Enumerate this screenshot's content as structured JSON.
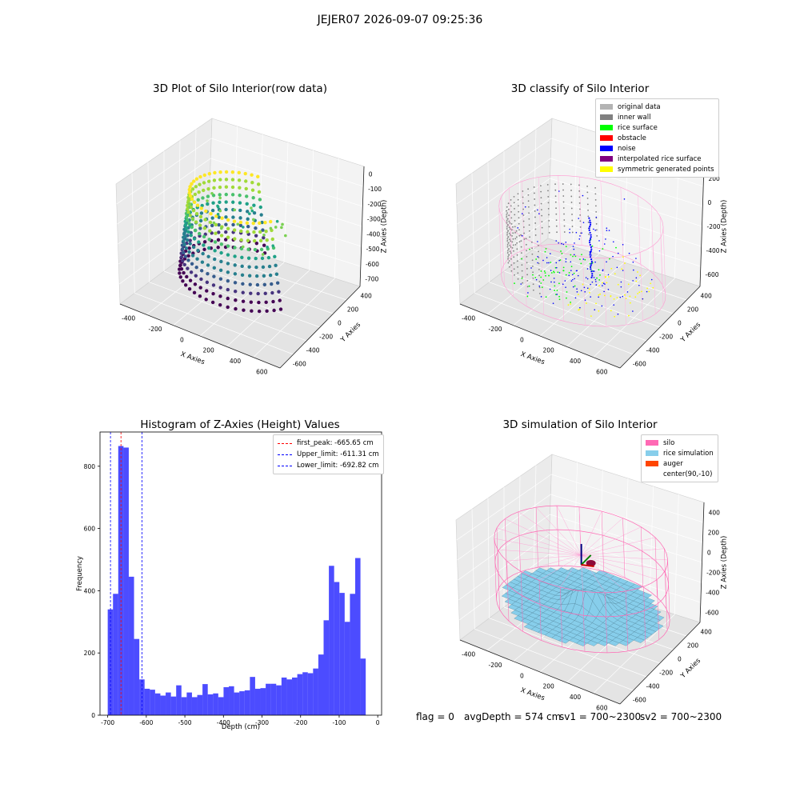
{
  "figure": {
    "suptitle": "JEJER07 2026-09-07 09:25:36"
  },
  "panels": {
    "raw": {
      "title": "3D Plot of Silo Interior(row data)",
      "xlabel": "X Axies",
      "ylabel": "Y Axies",
      "zlabel": "Z Axies (Depth)",
      "x_ticks": [
        "-400",
        "-200",
        "0",
        "200",
        "400",
        "600"
      ],
      "y_ticks": [
        "-600",
        "-400",
        "-200",
        "0",
        "200",
        "400"
      ],
      "z_ticks": [
        "0",
        "-100",
        "-200",
        "-300",
        "-400",
        "-500",
        "-600",
        "-700"
      ]
    },
    "classify": {
      "title": "3D classify of Silo Interior",
      "xlabel": "X Axies",
      "ylabel": "Y Axies",
      "zlabel": "Z Axies (Depth)",
      "x_ticks": [
        "-400",
        "-200",
        "0",
        "200",
        "400",
        "600"
      ],
      "y_ticks": [
        "-600",
        "-400",
        "-200",
        "0",
        "200",
        "400"
      ],
      "z_ticks": [
        "200",
        "0",
        "-200",
        "-400",
        "-600"
      ],
      "legend": [
        {
          "label": "original data",
          "color": "#b3b3b3"
        },
        {
          "label": "inner wall",
          "color": "#808080"
        },
        {
          "label": "rice surface",
          "color": "#00ff00"
        },
        {
          "label": "obstacle",
          "color": "#ff0000"
        },
        {
          "label": "noise",
          "color": "#0000ff"
        },
        {
          "label": "interpolated rice surface",
          "color": "#800080"
        },
        {
          "label": "symmetric generated points",
          "color": "#ffff00"
        }
      ]
    },
    "simulation": {
      "title": "3D simulation of Silo Interior",
      "xlabel": "X Axies",
      "ylabel": "Y Axies",
      "zlabel": "Z Axies (Depth)",
      "x_ticks": [
        "-400",
        "-200",
        "0",
        "200",
        "400",
        "600"
      ],
      "y_ticks": [
        "-600",
        "-400",
        "-200",
        "0",
        "200",
        "400"
      ],
      "z_ticks": [
        "400",
        "200",
        "0",
        "-200",
        "-400",
        "-600"
      ],
      "legend": [
        {
          "label": "silo",
          "color": "#ff69b4"
        },
        {
          "label": "rice simulation",
          "color": "#87ceeb"
        },
        {
          "label": "auger",
          "color": "#ff4500"
        },
        {
          "label": "center(90,-10)",
          "color": "#ffffff"
        }
      ]
    }
  },
  "status_line": {
    "flag": "flag = 0",
    "avg_depth": "avgDepth = 574 cm",
    "sv1": "sv1 = 700~2300",
    "sv2": "sv2 = 700~2300"
  },
  "chart_data": {
    "type": "bar",
    "title": "Histogram of Z-Axies (Height) Values",
    "xlabel": "Depth (cm)",
    "ylabel": "Frequency",
    "xlim": [
      -720,
      10
    ],
    "ylim": [
      0,
      910
    ],
    "x_ticks": [
      -700,
      -600,
      -500,
      -400,
      -300,
      -200,
      -100,
      0
    ],
    "y_ticks": [
      0,
      200,
      400,
      600,
      800
    ],
    "bar_color": "#0000ff",
    "bin_start": -700,
    "bin_width": 13.65,
    "values": [
      340,
      390,
      865,
      860,
      445,
      245,
      115,
      85,
      82,
      70,
      63,
      73,
      60,
      96,
      58,
      73,
      58,
      65,
      100,
      67,
      70,
      58,
      90,
      93,
      73,
      77,
      80,
      123,
      85,
      87,
      101,
      101,
      96,
      121,
      115,
      121,
      132,
      138,
      135,
      150,
      195,
      305,
      480,
      428,
      393,
      300,
      390,
      505,
      182
    ],
    "vlines": [
      {
        "label": "first_peak: -665.65 cm",
        "x": -665.65,
        "color": "#ff0000"
      },
      {
        "label": "Upper_limit: -611.31 cm",
        "x": -611.31,
        "color": "#0000ff"
      },
      {
        "label": "Lower_limit: -692.82 cm",
        "x": -692.82,
        "color": "#0000ff"
      }
    ],
    "legend_position": "top-right",
    "grid": false
  }
}
